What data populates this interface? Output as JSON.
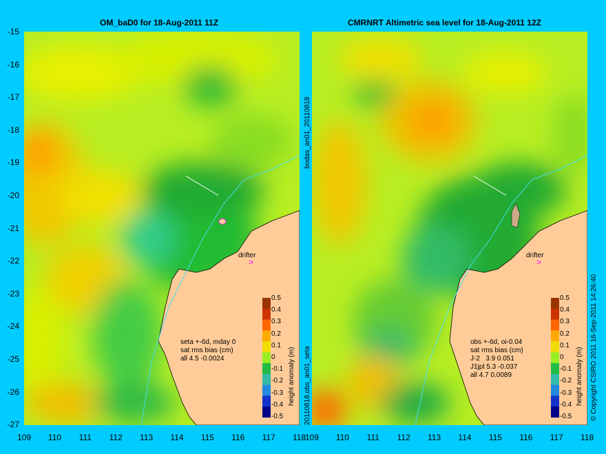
{
  "left_panel": {
    "title": "OM_baD0 for 18-Aug-2011 11Z",
    "side_label_top": "bodas_an01_20110818",
    "side_label_bottom": "20110818.obs_an01_seta",
    "note_lines": [
      "seta +-6d, mday 0",
      "sat rms bias (cm)",
      "all 4.5 -0.0024"
    ],
    "drifter_label": "drifter"
  },
  "right_panel": {
    "title": "CMRNRT Altimetric sea level  for 18-Aug-2011 12Z",
    "note_lines": [
      "obs +-6d, oi-0.04",
      "sat rms bias (cm)",
      "J-2   3.9 0.051",
      "J1jpl 5.3 -0.037",
      "all 4.7 0.0089"
    ],
    "drifter_label": "drifter",
    "credit": "© Copyright CSIRO 2011    16-Sep-2011 14:26:40"
  },
  "axes": {
    "y_ticks": [
      "-15",
      "-16",
      "-17",
      "-18",
      "-19",
      "-20",
      "-21",
      "-22",
      "-23",
      "-24",
      "-25",
      "-26",
      "-27"
    ],
    "x_ticks": [
      "109",
      "110",
      "111",
      "112",
      "113",
      "114",
      "115",
      "116",
      "117",
      "118"
    ],
    "lon_range": [
      109,
      118
    ],
    "lat_range": [
      -27,
      -15
    ]
  },
  "colorbar": {
    "title": "height anomaly (m)",
    "ticks": [
      "0.5",
      "0.4",
      "0.3",
      "0.2",
      "0.1",
      "0",
      "-0.1",
      "-0.2",
      "-0.3",
      "-0.4",
      "-0.5"
    ],
    "range": [
      -0.5,
      0.5
    ]
  },
  "colors": {
    "background": "#00ccff",
    "land": "#ffcc99",
    "drifter_marker": "#ff00ff"
  }
}
